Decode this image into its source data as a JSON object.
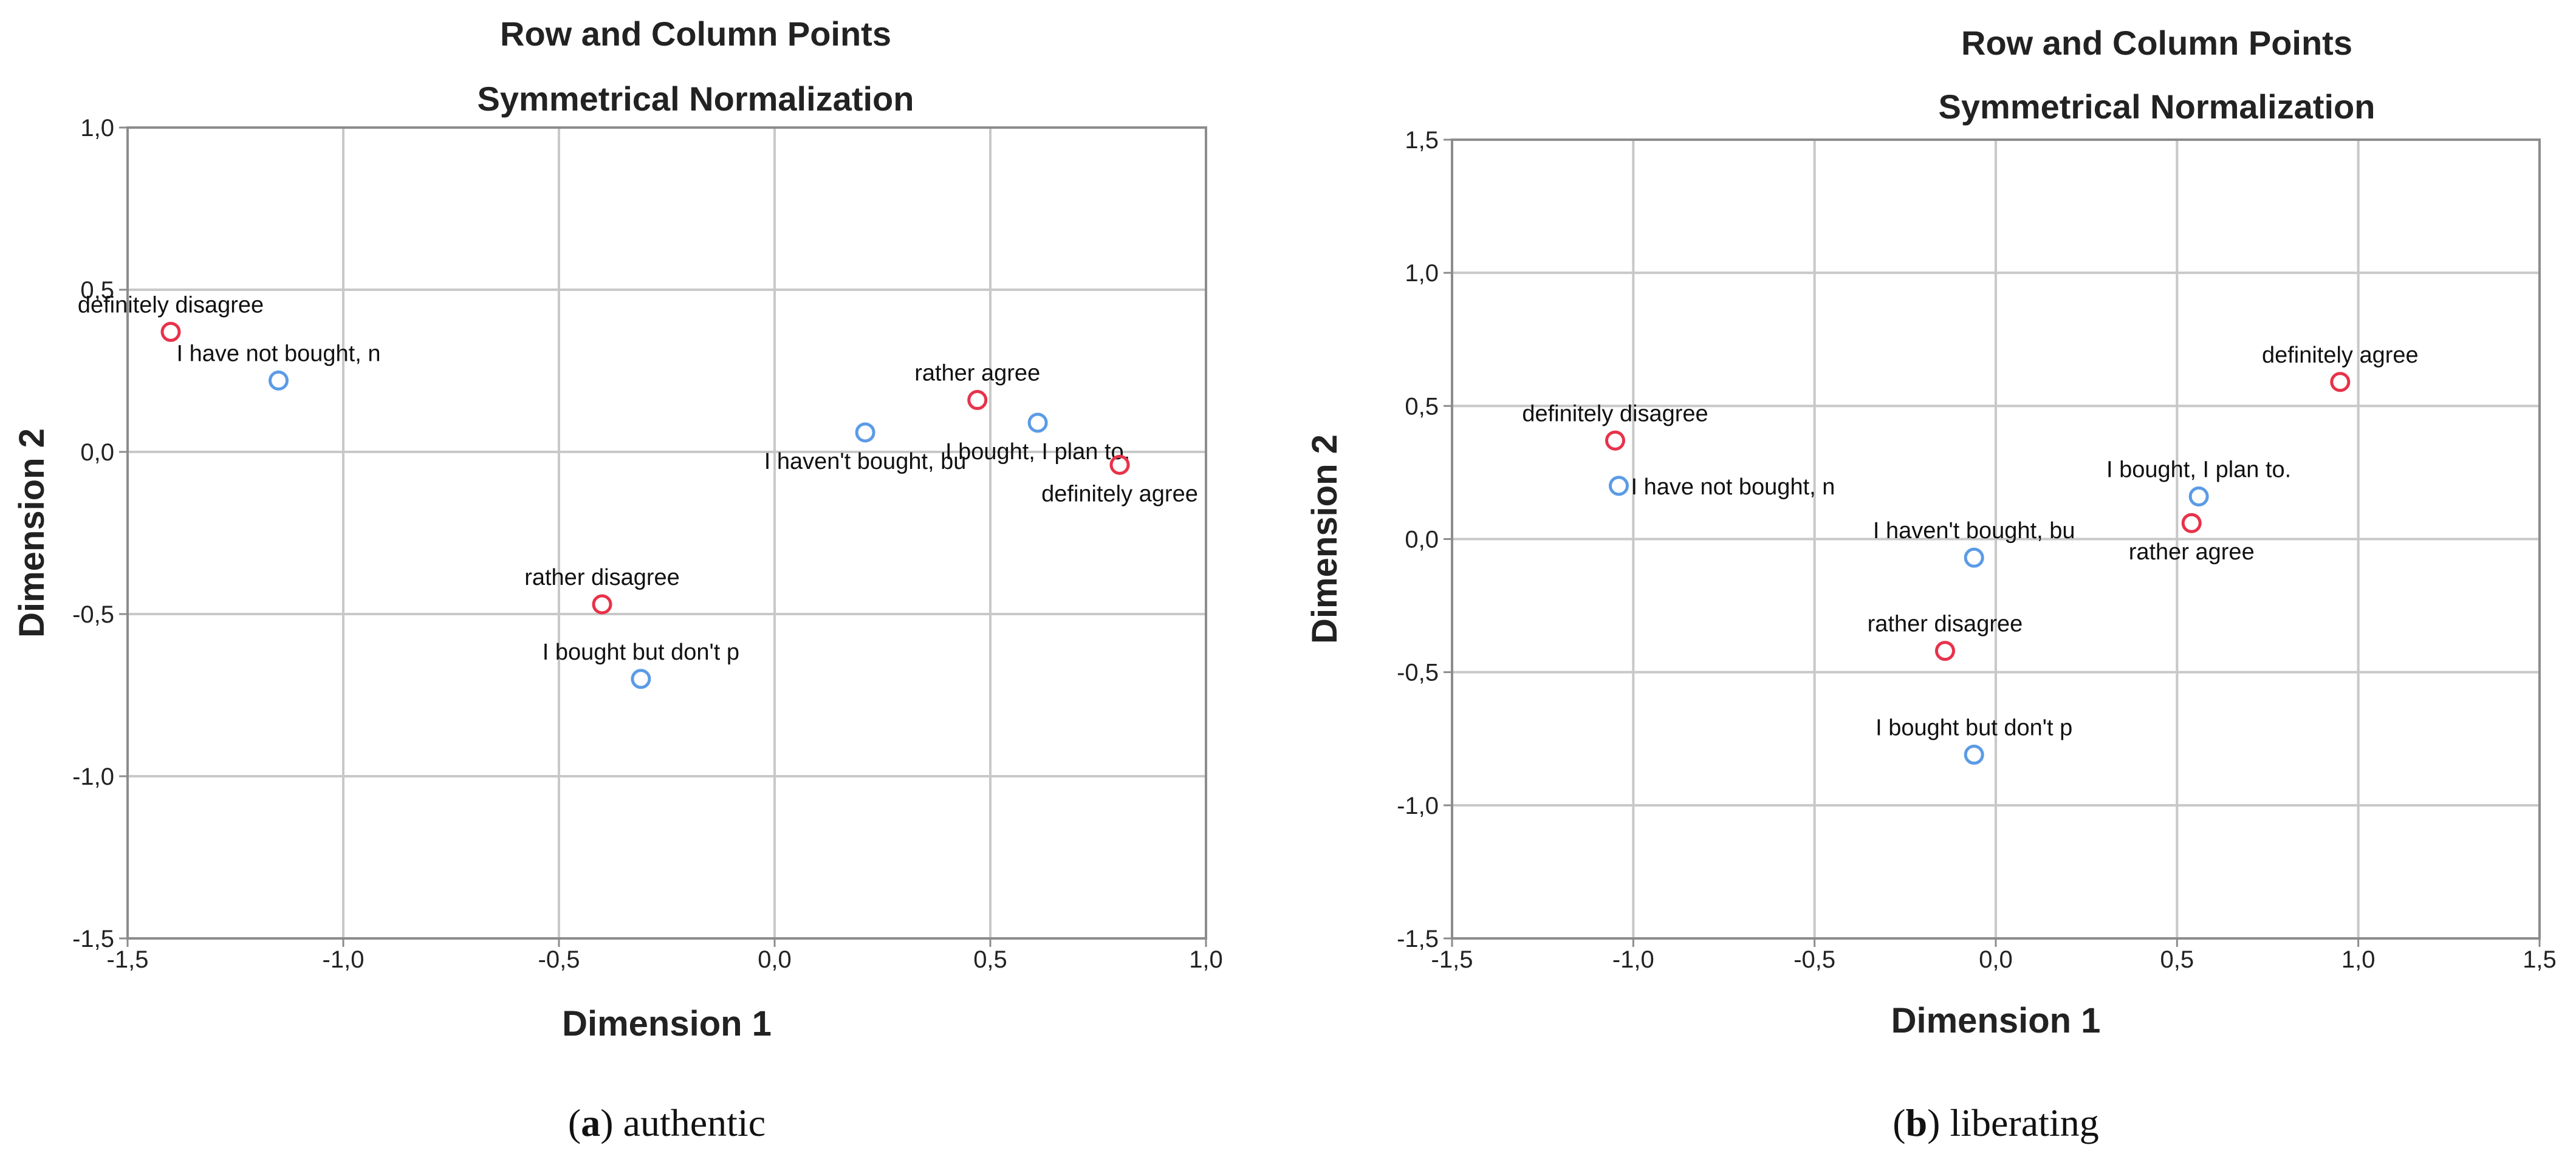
{
  "colors": {
    "row_points": "#e8324a",
    "column_points": "#5b9be6",
    "grid": "#c8c8c8",
    "frame": "#8c8c8c"
  },
  "chart_data": [
    {
      "type": "scatter",
      "title": "Row and Column Points",
      "subtitle": "Symmetrical Normalization",
      "xlabel": "Dimension 1",
      "ylabel": "Dimension 2",
      "xlim": [
        -1.5,
        1.0
      ],
      "ylim": [
        -1.5,
        1.0
      ],
      "xticks": [
        "-1,5",
        "-1,0",
        "-0,5",
        "0,0",
        "0,5",
        "1,0"
      ],
      "yticks": [
        "-1,5",
        "-1,0",
        "-0,5",
        "0,0",
        "0,5",
        "1,0"
      ],
      "grid": true,
      "caption_letter": "a",
      "caption_text": "authentic",
      "points": [
        {
          "label": "definitely disagree",
          "x": -1.4,
          "y": 0.37,
          "kind": "row",
          "anchor": "top"
        },
        {
          "label": "I have not bought, n",
          "x": -1.15,
          "y": 0.22,
          "kind": "column",
          "anchor": "top"
        },
        {
          "label": "rather agree",
          "x": 0.47,
          "y": 0.16,
          "kind": "row",
          "anchor": "top"
        },
        {
          "label": "I bought, I plan to.",
          "x": 0.61,
          "y": 0.09,
          "kind": "column",
          "anchor": "bottom"
        },
        {
          "label": "I haven't bought, bu",
          "x": 0.21,
          "y": 0.06,
          "kind": "column",
          "anchor": "bottom"
        },
        {
          "label": "definitely agree",
          "x": 0.8,
          "y": -0.04,
          "kind": "row",
          "anchor": "bottom"
        },
        {
          "label": "rather disagree",
          "x": -0.4,
          "y": -0.47,
          "kind": "row",
          "anchor": "top"
        },
        {
          "label": "I bought but don't p",
          "x": -0.31,
          "y": -0.7,
          "kind": "column",
          "anchor": "top"
        }
      ]
    },
    {
      "type": "scatter",
      "title": "Row and Column Points",
      "subtitle": "Symmetrical Normalization",
      "xlabel": "Dimension 1",
      "ylabel": "Dimension 2",
      "xlim": [
        -1.5,
        1.5
      ],
      "ylim": [
        -1.5,
        1.5
      ],
      "xticks": [
        "-1,5",
        "-1,0",
        "-0,5",
        "0,0",
        "0,5",
        "1,0",
        "1,5"
      ],
      "yticks": [
        "-1,5",
        "-1,0",
        "-0,5",
        "0,0",
        "0,5",
        "1,0",
        "1,5"
      ],
      "grid": true,
      "caption_letter": "b",
      "caption_text": "liberating",
      "points": [
        {
          "label": "definitely agree",
          "x": 0.95,
          "y": 0.59,
          "kind": "row",
          "anchor": "top"
        },
        {
          "label": "definitely disagree",
          "x": -1.05,
          "y": 0.37,
          "kind": "row",
          "anchor": "top"
        },
        {
          "label": "I have not bought, n",
          "x": -1.04,
          "y": 0.2,
          "kind": "column",
          "anchor": "right"
        },
        {
          "label": "I bought, I plan to.",
          "x": 0.56,
          "y": 0.16,
          "kind": "column",
          "anchor": "top"
        },
        {
          "label": "rather agree",
          "x": 0.54,
          "y": 0.06,
          "kind": "row",
          "anchor": "bottom"
        },
        {
          "label": "I haven't bought, bu",
          "x": -0.06,
          "y": -0.07,
          "kind": "column",
          "anchor": "top"
        },
        {
          "label": "rather disagree",
          "x": -0.14,
          "y": -0.42,
          "kind": "row",
          "anchor": "top"
        },
        {
          "label": "I bought but don't p",
          "x": -0.06,
          "y": -0.81,
          "kind": "column",
          "anchor": "top"
        }
      ]
    }
  ]
}
